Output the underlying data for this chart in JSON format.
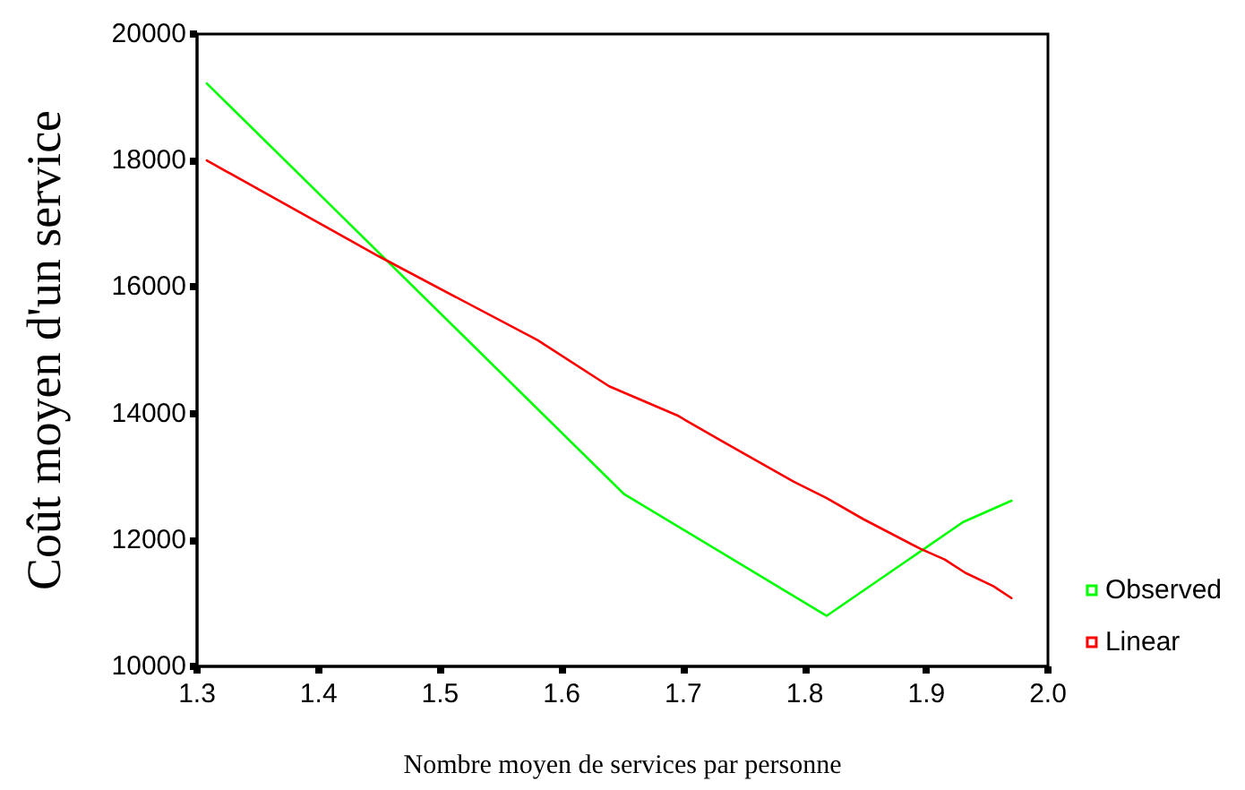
{
  "chart_data": {
    "type": "line",
    "xlabel": "Nombre moyen de services par personne",
    "ylabel": "Coût moyen d'un service",
    "xlim": [
      1.3,
      2.0
    ],
    "xticks": [
      1.3,
      1.4,
      1.5,
      1.6,
      1.7,
      1.8,
      1.9,
      {
        "value": 2,
        "label": "2.0"
      }
    ],
    "ylim": [
      10000,
      20000
    ],
    "yticks": [
      10000,
      12000,
      14000,
      16000,
      18000,
      20000
    ],
    "grid": false,
    "legend": "right",
    "marker": "none",
    "line_style": "solid",
    "series": [
      {
        "name": "Observed",
        "color": "#00ff00",
        "x": [
          1.308,
          1.651,
          1.818,
          1.93,
          1.97
        ],
        "values": [
          19220,
          12730,
          10800,
          12280,
          12620
        ]
      },
      {
        "name": "Linear",
        "color": "#ff0000",
        "x": [
          1.308,
          1.45,
          1.58,
          1.639,
          1.695,
          1.732,
          1.791,
          1.818,
          1.848,
          1.895,
          1.915,
          1.932,
          1.955,
          1.97
        ],
        "values": [
          18000,
          16480,
          15160,
          14430,
          13970,
          13560,
          12920,
          12660,
          12330,
          11860,
          11690,
          11480,
          11270,
          11080
        ]
      }
    ]
  }
}
